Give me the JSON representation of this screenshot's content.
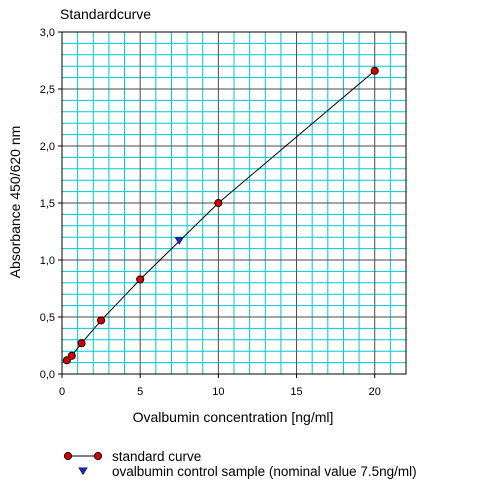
{
  "chart_data": {
    "type": "scatter",
    "title": "Standardcurve",
    "xlabel": "Ovalbumin concentration [ng/ml]",
    "ylabel": "Absorbance 450/620 nm",
    "xlim": [
      0,
      22
    ],
    "ylim": [
      0,
      3.0
    ],
    "x_ticks": [
      {
        "value": 0,
        "label": "0"
      },
      {
        "value": 5,
        "label": "5"
      },
      {
        "value": 10,
        "label": "10"
      },
      {
        "value": 15,
        "label": "15"
      },
      {
        "value": 20,
        "label": "20"
      }
    ],
    "y_ticks": [
      {
        "value": 0.0,
        "label": "0,0"
      },
      {
        "value": 0.5,
        "label": "0,5"
      },
      {
        "value": 1.0,
        "label": "1,0"
      },
      {
        "value": 1.5,
        "label": "1,5"
      },
      {
        "value": 2.0,
        "label": "2,0"
      },
      {
        "value": 2.5,
        "label": "2,5"
      },
      {
        "value": 3.0,
        "label": "3,0"
      }
    ],
    "grid": true,
    "minor_grid": true,
    "legend_position": "bottom",
    "series": [
      {
        "name": "standard curve",
        "marker": "circle",
        "connected": true,
        "color": "#d40000",
        "points": [
          {
            "x": 0.31,
            "y": 0.12
          },
          {
            "x": 0.625,
            "y": 0.16
          },
          {
            "x": 1.25,
            "y": 0.27
          },
          {
            "x": 2.5,
            "y": 0.47
          },
          {
            "x": 5,
            "y": 0.83
          },
          {
            "x": 10,
            "y": 1.5
          },
          {
            "x": 20,
            "y": 2.66
          }
        ]
      },
      {
        "name": "ovalbumin control sample (nominal value 7.5ng/ml)",
        "marker": "triangle-down",
        "connected": false,
        "color": "#1a2bb8",
        "points": [
          {
            "x": 7.5,
            "y": 1.17
          }
        ]
      }
    ],
    "colors": {
      "grid": "#00c8d2",
      "major_grid": "#4a4a4a",
      "line": "#000000"
    }
  }
}
